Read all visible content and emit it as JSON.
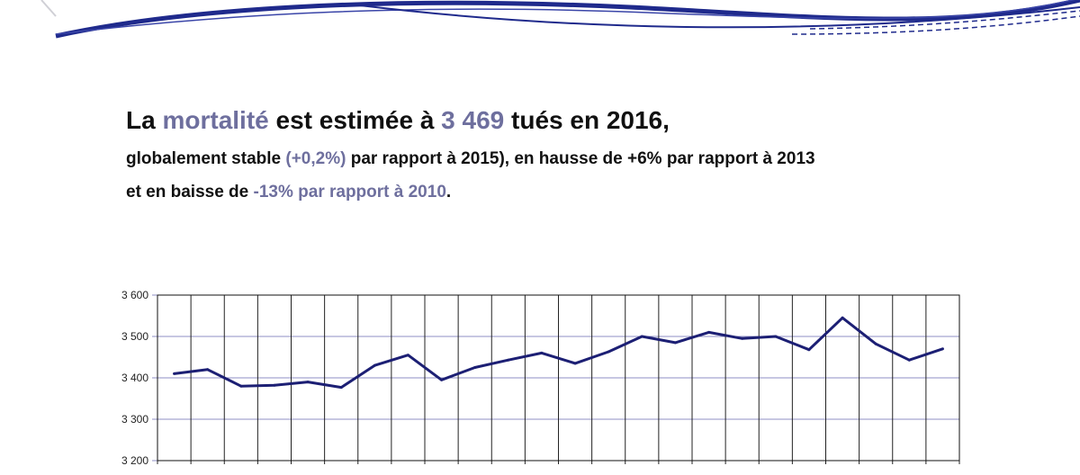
{
  "headline": {
    "line1": {
      "t1": "La ",
      "a1": "mortalité",
      "t2": " est estimée à ",
      "a2": "3 469",
      "t3": " tués en 2016,"
    },
    "line2": {
      "t1": "globalement stable ",
      "a1": "(+0,2%)",
      "t2": " par rapport à 2015), en hausse de +6% par rapport à 2013"
    },
    "line3": {
      "t1": "et en baisse de ",
      "a1": "-13% par rapport à 2010",
      "t2": "."
    }
  },
  "colors": {
    "line": "#1c1f74",
    "accent": "#6e6f9e",
    "swoosh": "#1f2a8c",
    "gridline_h": "#8f8fc4",
    "gridline_v": "#222222"
  },
  "chart_data": {
    "type": "line",
    "ylim": [
      3200,
      3600
    ],
    "yticks": [
      "3 200",
      "3 300",
      "3 400",
      "3 500",
      "3 600"
    ],
    "grid": true,
    "series": [
      {
        "values": [
          3410,
          3420,
          3380,
          3382,
          3390,
          3377,
          3430,
          3455,
          3395,
          3425,
          3443,
          3460,
          3435,
          3463,
          3500,
          3485,
          3510,
          3495,
          3500,
          3468,
          3545,
          3482,
          3443,
          3470
        ]
      }
    ]
  }
}
